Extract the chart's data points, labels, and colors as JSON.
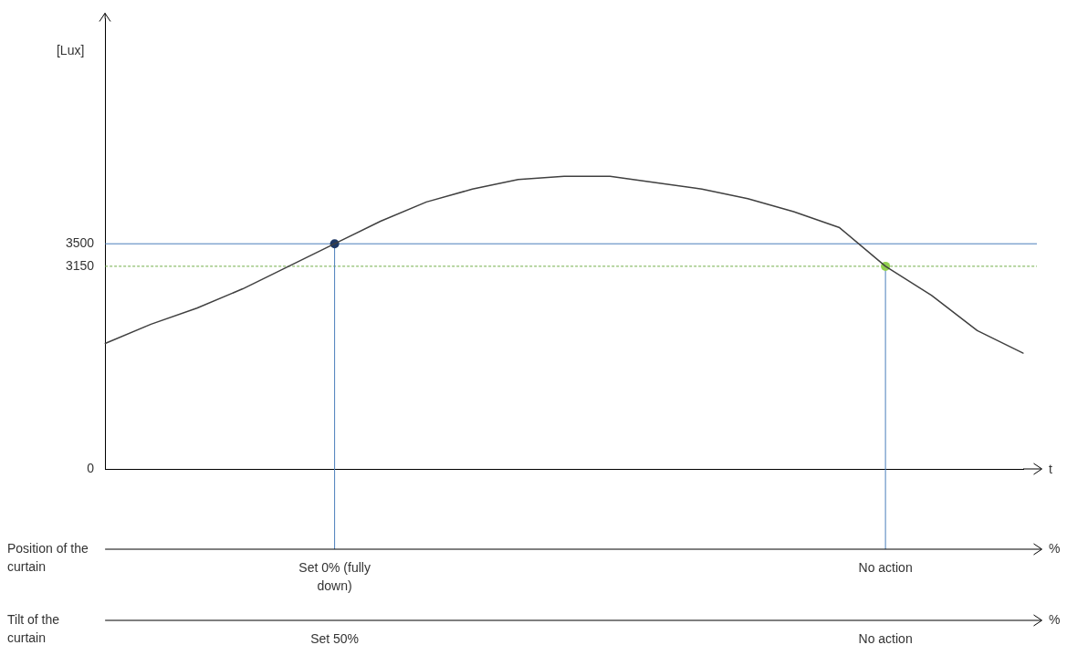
{
  "chart_data": {
    "type": "line",
    "xlabel": "t",
    "ylabel": "[Lux]",
    "categories": [
      null,
      null,
      null,
      null,
      null,
      null,
      null,
      null,
      null,
      null,
      null,
      null,
      null,
      null,
      null,
      null,
      null,
      null,
      null,
      null,
      null
    ],
    "ylim": [
      0,
      7000
    ],
    "yticks": [
      0,
      3150,
      3500
    ],
    "tick_labels": "y",
    "grid": false,
    "legend": false,
    "series": [
      {
        "color": "#404040",
        "marker": "none",
        "values": [
          1950,
          2250,
          2500,
          2800,
          3150,
          3500,
          3850,
          4150,
          4350,
          4500,
          4550,
          4550,
          4450,
          4350,
          4200,
          4000,
          3750,
          3150,
          2700,
          2150,
          1800
        ]
      },
      {
        "type": "scatter",
        "marker": "circle",
        "colors": [
          null,
          null,
          null,
          null,
          null,
          "#1f3864",
          null,
          null,
          null,
          null,
          null,
          null,
          null,
          null,
          null,
          null,
          null,
          "#92d050",
          null,
          null,
          null
        ],
        "values": [
          null,
          null,
          null,
          null,
          null,
          3500,
          null,
          null,
          null,
          null,
          null,
          null,
          null,
          null,
          null,
          null,
          null,
          3150,
          null,
          null,
          null
        ]
      }
    ],
    "ref_lines": [
      {
        "axis": "y",
        "value": 3500,
        "color": "#4a7ebb",
        "line_style": "solid"
      },
      {
        "axis": "y",
        "value": 3150,
        "color": "#70ad47",
        "line_style": "dashed"
      }
    ],
    "annotations": [
      "Position of the curtain",
      "%",
      "Set 0% (fully down)",
      "No action",
      "Tilt of the curtain",
      "%",
      "Set 50%",
      "No action"
    ]
  }
}
